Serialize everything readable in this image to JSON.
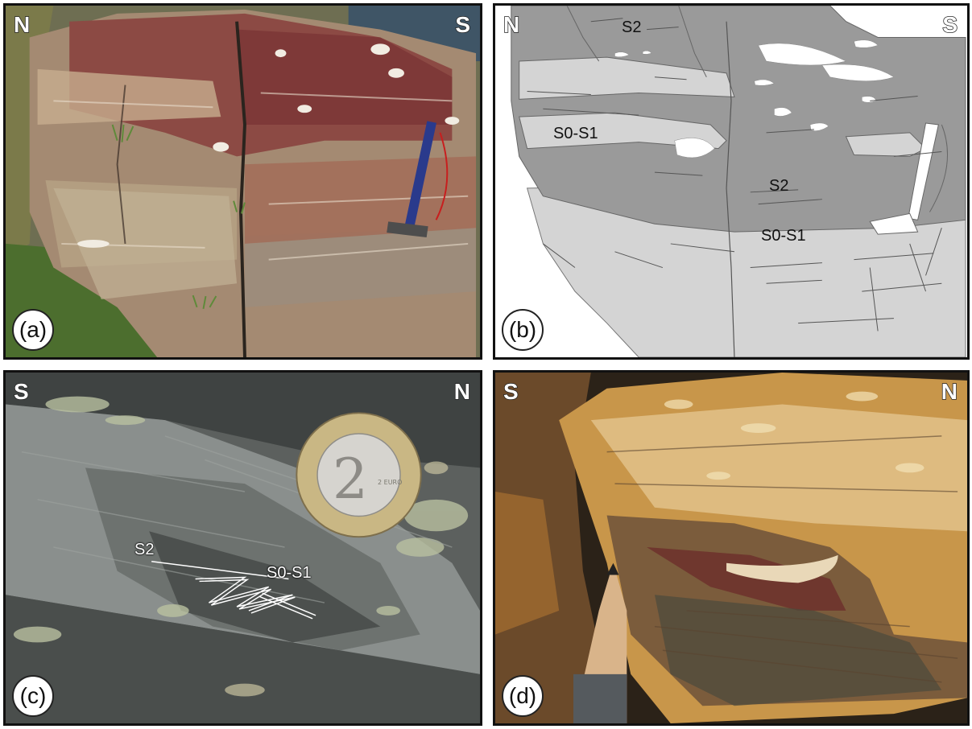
{
  "panels": {
    "a": {
      "label": "(a)",
      "left_dir": "N",
      "right_dir": "S"
    },
    "b": {
      "label": "(b)",
      "left_dir": "N",
      "right_dir": "S",
      "annotations": {
        "s2_top": "S2",
        "s0s1_left": "S0-S1",
        "s2_mid": "S2",
        "s0s1_mid": "S0-S1"
      }
    },
    "c": {
      "label": "(c)",
      "left_dir": "S",
      "right_dir": "N",
      "annotations": {
        "s2": "S2",
        "s0s1": "S0-S1"
      },
      "coin_text": "2 EURO"
    },
    "d": {
      "label": "(d)",
      "left_dir": "S",
      "right_dir": "N"
    }
  },
  "colors": {
    "sketch_dark": "#9a9a9a",
    "sketch_light": "#d4d4d4",
    "rock_red": "#8a3a3a",
    "rock_tan": "#b89a7a",
    "schist_grey": "#6f7370",
    "ochre": "#c8964a"
  }
}
